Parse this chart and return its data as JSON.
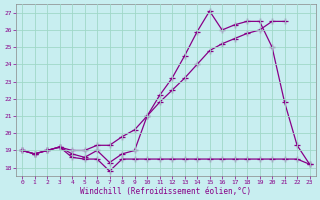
{
  "xlabel": "Windchill (Refroidissement éolien,°C)",
  "background_color": "#c8eef0",
  "grid_color": "#a0d8c8",
  "line_color": "#880088",
  "xlim_min": -0.5,
  "xlim_max": 23.5,
  "ylim_min": 17.5,
  "ylim_max": 27.5,
  "xticks": [
    0,
    1,
    2,
    3,
    4,
    5,
    6,
    7,
    8,
    9,
    10,
    11,
    12,
    13,
    14,
    15,
    16,
    17,
    18,
    19,
    20,
    21,
    22,
    23
  ],
  "yticks": [
    18,
    19,
    20,
    21,
    22,
    23,
    24,
    25,
    26,
    27
  ],
  "line1_x": [
    0,
    1,
    2,
    3,
    4,
    5,
    6,
    7,
    8,
    9,
    10,
    11,
    12,
    13,
    14,
    15,
    16,
    17,
    18,
    19,
    20,
    21,
    22,
    23
  ],
  "line1_y": [
    19.0,
    18.8,
    19.0,
    19.2,
    18.6,
    18.5,
    18.5,
    17.8,
    18.5,
    18.5,
    18.5,
    18.5,
    18.5,
    18.5,
    18.5,
    18.5,
    18.5,
    18.5,
    18.5,
    18.5,
    18.5,
    18.5,
    18.5,
    18.2
  ],
  "line2_x": [
    0,
    1,
    2,
    3,
    4,
    5,
    6,
    7,
    8,
    9,
    10,
    11,
    12,
    13,
    14,
    15,
    16,
    17,
    18,
    19,
    20,
    21,
    22,
    23
  ],
  "line2_y": [
    19.0,
    18.8,
    19.0,
    19.2,
    18.8,
    18.6,
    19.0,
    18.3,
    18.8,
    19.0,
    21.0,
    22.2,
    23.2,
    24.5,
    25.9,
    27.1,
    26.0,
    26.3,
    26.5,
    26.5,
    25.0,
    21.8,
    19.3,
    18.2
  ],
  "line3_x": [
    0,
    1,
    2,
    3,
    4,
    5,
    6,
    7,
    8,
    9,
    10,
    11,
    12,
    13,
    14,
    15,
    16,
    17,
    18,
    19,
    20,
    21,
    22,
    23
  ],
  "line3_y": [
    19.0,
    18.8,
    19.0,
    19.2,
    19.0,
    19.0,
    19.3,
    19.3,
    19.8,
    20.2,
    21.0,
    21.8,
    22.5,
    23.2,
    24.0,
    24.8,
    25.2,
    25.5,
    25.8,
    26.0,
    26.5,
    26.5,
    null,
    null
  ]
}
